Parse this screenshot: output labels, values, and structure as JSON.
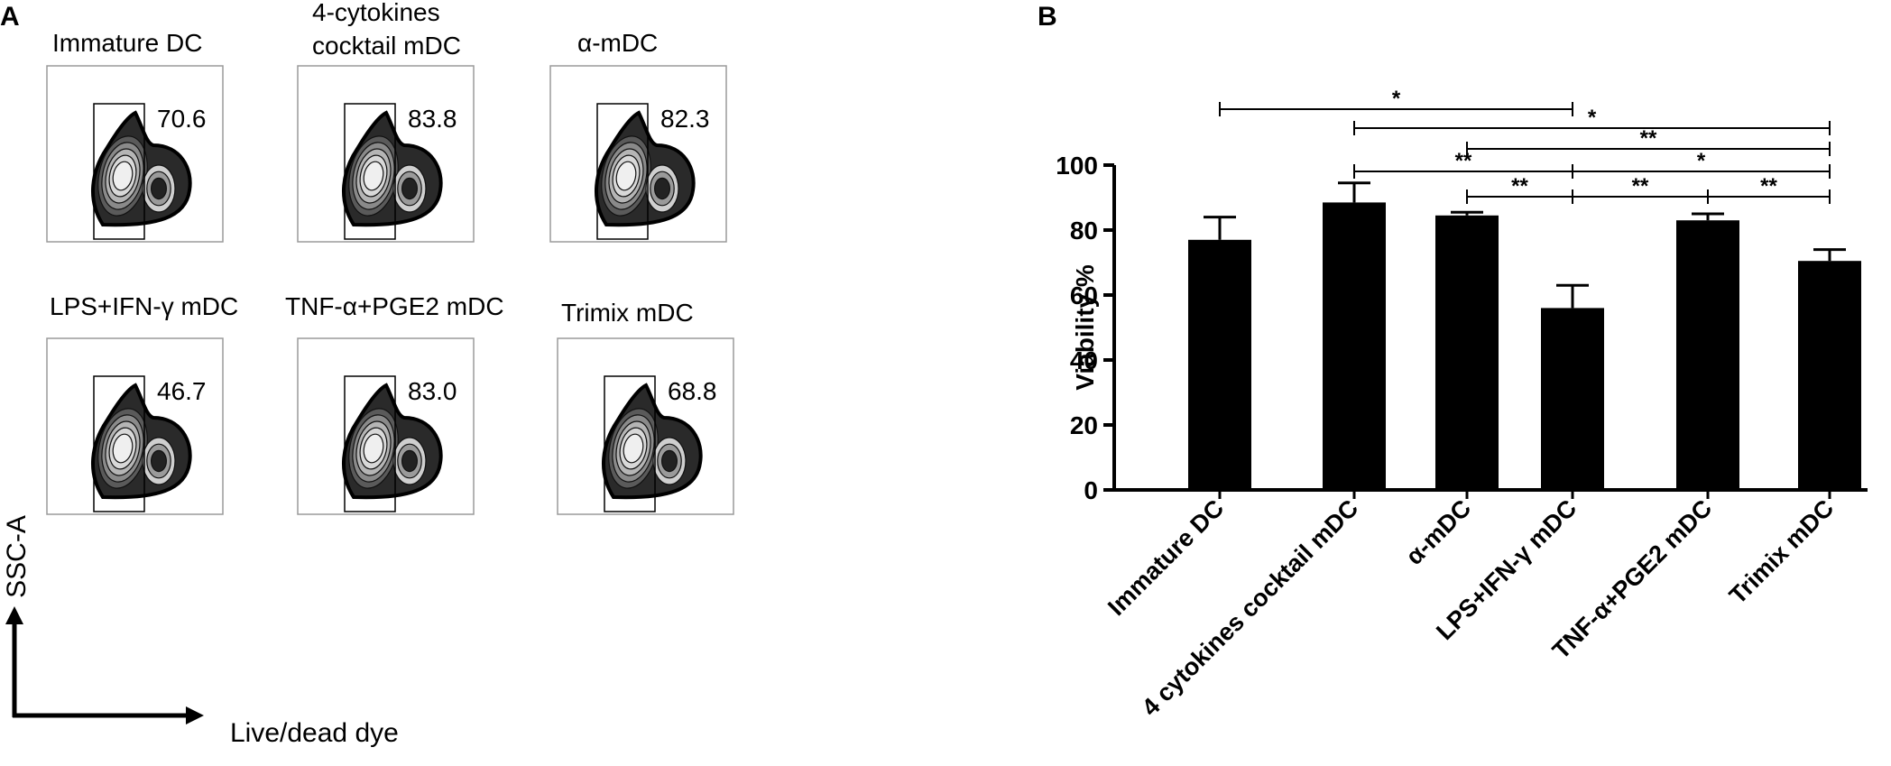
{
  "panel_a": {
    "label": "A",
    "plots": [
      {
        "title_lines": [
          "Immature DC"
        ],
        "gate_value": "70.6"
      },
      {
        "title_lines": [
          "4-cytokines",
          "cocktail mDC"
        ],
        "gate_value": "83.8"
      },
      {
        "title_lines": [
          "α-mDC"
        ],
        "gate_value": "82.3"
      },
      {
        "title_lines": [
          "LPS+IFN-γ mDC"
        ],
        "gate_value": "46.7"
      },
      {
        "title_lines": [
          "TNF-α+PGE2 mDC"
        ],
        "gate_value": "83.0"
      },
      {
        "title_lines": [
          "Trimix mDC"
        ],
        "gate_value": "68.8"
      }
    ],
    "y_axis_label": "SSC-A",
    "x_axis_label": "Live/dead dye"
  },
  "panel_b": {
    "label": "B"
  },
  "chart_data": {
    "type": "bar",
    "title": "",
    "xlabel": "",
    "ylabel": "Viability %",
    "ylim": [
      0,
      100
    ],
    "yticks": [
      "0",
      "20",
      "40",
      "60",
      "80",
      "100"
    ],
    "categories": [
      "Immature DC",
      "4 cytokines cocktail mDC",
      "α-mDC",
      "LPS+IFN-γ mDC",
      "TNF-α+PGE2 mDC",
      "Trimix mDC"
    ],
    "values": [
      77,
      88.5,
      84.5,
      56,
      83,
      70.5
    ],
    "errors": [
      7,
      6,
      1,
      7,
      2,
      3.5
    ],
    "bar_color": "#000000",
    "significance": [
      {
        "from": 0,
        "to": 3,
        "label": "*"
      },
      {
        "from": 1,
        "to": 5,
        "label": "*"
      },
      {
        "from": 2,
        "to": 5,
        "label": "**"
      },
      {
        "from": 1,
        "to": 3,
        "label": "**"
      },
      {
        "from": 3,
        "to": 5,
        "label": "*"
      },
      {
        "from": 2,
        "to": 3,
        "label": "**"
      },
      {
        "from": 3,
        "to": 4,
        "label": "**"
      },
      {
        "from": 4,
        "to": 5,
        "label": "**"
      }
    ]
  }
}
